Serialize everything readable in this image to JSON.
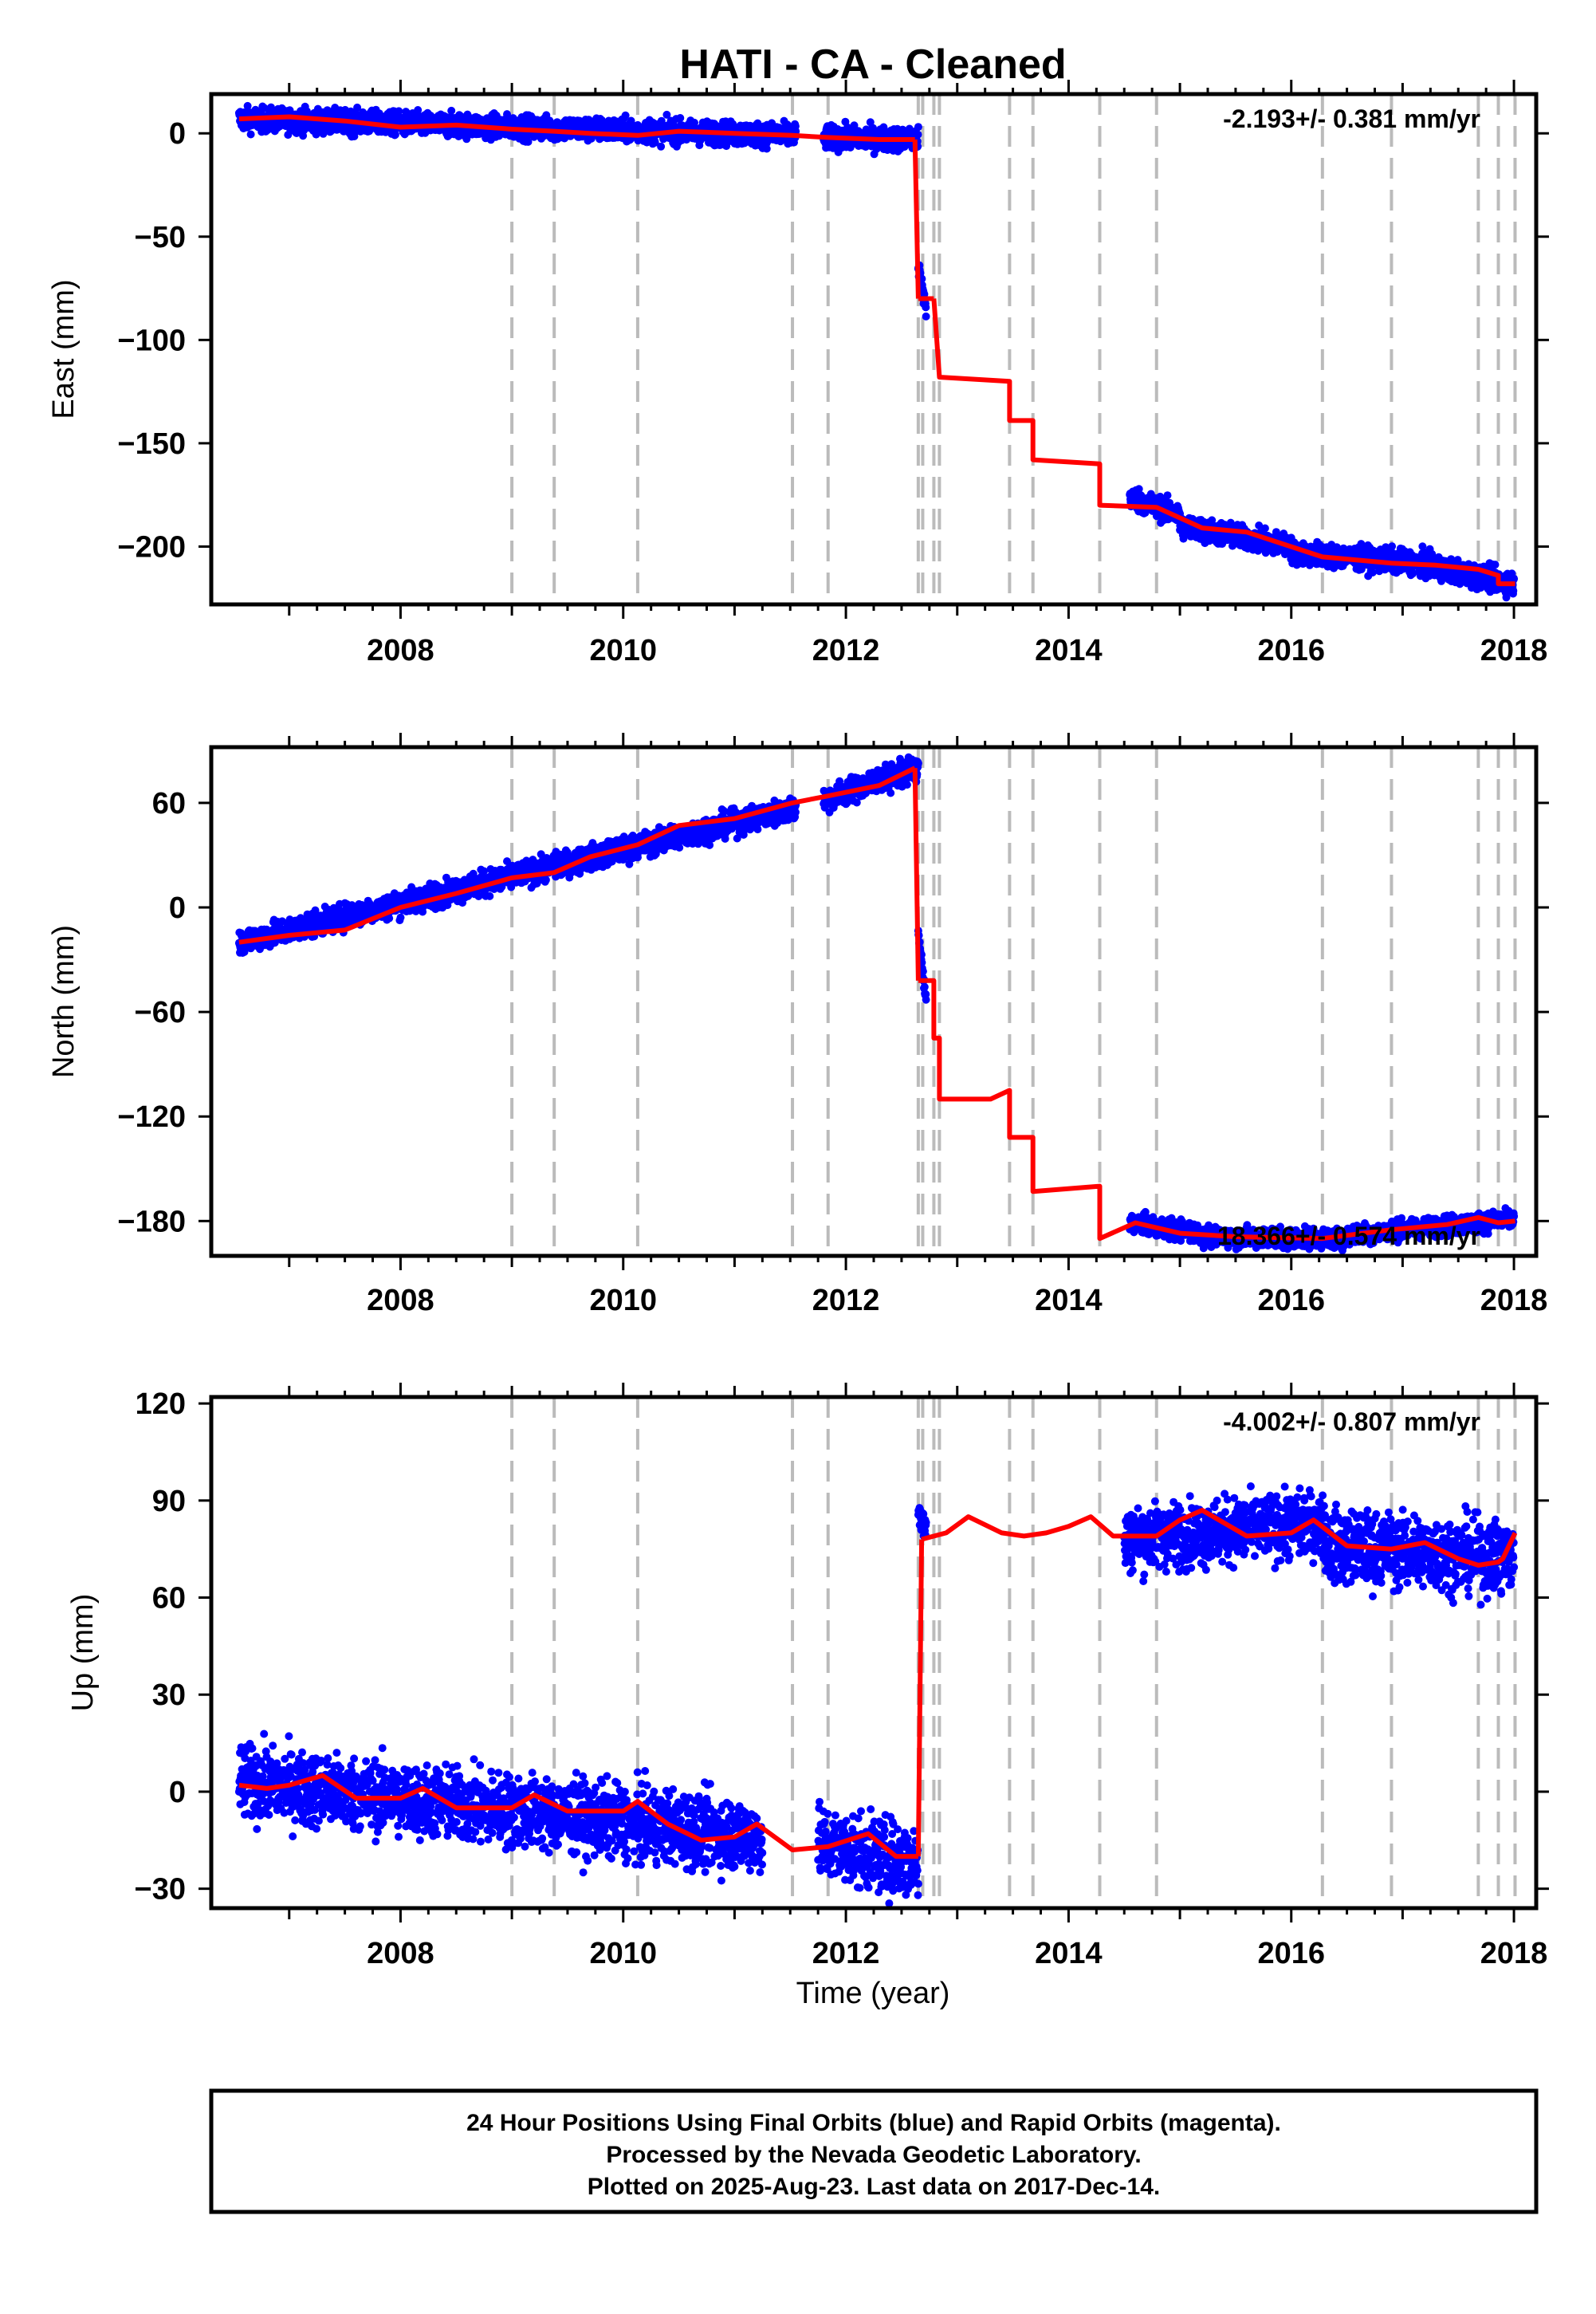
{
  "title": "HATI  - CA - Cleaned",
  "xlabel": "Time (year)",
  "footer": {
    "line1": "24 Hour Positions Using Final Orbits (blue) and Rapid Orbits (magenta).",
    "line2": "Processed by the Nevada Geodetic Laboratory.",
    "line3": "Plotted on 2025-Aug-23. Last data on 2017-Dec-14."
  },
  "colors": {
    "data": "#0000ff",
    "model": "#ff0000",
    "eventLine": "#bbbbbb"
  },
  "chart_data": [
    {
      "type": "scatter",
      "ylabel": "East (mm)",
      "rate_text": "-2.193+/- 0.381 mm/yr",
      "xlim": [
        2006.3,
        2018.2
      ],
      "ylim": [
        -228,
        19
      ],
      "xticks": [
        2008,
        2010,
        2012,
        2014,
        2016,
        2018
      ],
      "yticks": [
        0,
        -50,
        -100,
        -150,
        -200
      ],
      "event_lines": [
        2009.0,
        2009.38,
        2010.13,
        2011.52,
        2011.84,
        2012.65,
        2012.69,
        2012.79,
        2012.84,
        2013.47,
        2013.68,
        2014.28,
        2014.79,
        2016.28,
        2016.9,
        2017.68,
        2017.86,
        2018.01
      ],
      "model_segments": [
        [
          [
            2006.55,
            7
          ],
          [
            2007.0,
            8
          ],
          [
            2007.5,
            6
          ],
          [
            2008.0,
            3
          ],
          [
            2008.5,
            4
          ],
          [
            2009.0,
            2
          ],
          [
            2009.38,
            1
          ],
          [
            2009.7,
            0
          ],
          [
            2010.13,
            -1
          ],
          [
            2010.5,
            1
          ],
          [
            2011.0,
            0
          ],
          [
            2011.52,
            -1
          ],
          [
            2011.84,
            -2
          ],
          [
            2012.3,
            -3
          ],
          [
            2012.62,
            -3
          ]
        ],
        [
          [
            2012.62,
            -3
          ],
          [
            2012.65,
            -80
          ]
        ],
        [
          [
            2012.65,
            -80
          ],
          [
            2012.79,
            -80
          ],
          [
            2012.79,
            -80
          ]
        ],
        [
          [
            2012.79,
            -80
          ],
          [
            2012.84,
            -118
          ],
          [
            2013.47,
            -120
          ],
          [
            2013.47,
            -139
          ],
          [
            2013.68,
            -139
          ],
          [
            2013.68,
            -158
          ],
          [
            2014.28,
            -160
          ],
          [
            2014.28,
            -180
          ],
          [
            2014.79,
            -181
          ],
          [
            2015.2,
            -191
          ],
          [
            2015.6,
            -193
          ],
          [
            2016.28,
            -205
          ],
          [
            2016.9,
            -208
          ],
          [
            2017.3,
            -209
          ],
          [
            2017.68,
            -211
          ],
          [
            2017.86,
            -214
          ],
          [
            2017.86,
            -218
          ],
          [
            2018.01,
            -218
          ]
        ]
      ],
      "data_runs": [
        {
          "x": [
            2006.55,
            2011.55
          ],
          "y": [
            7,
            -1
          ],
          "spread": 4
        },
        {
          "x": [
            2011.8,
            2012.65
          ],
          "y": [
            -2,
            -3
          ],
          "spread": 4
        },
        {
          "x": [
            2012.65,
            2012.72
          ],
          "y": [
            -65,
            -85
          ],
          "spread": 4
        },
        {
          "x": [
            2014.55,
            2015.0
          ],
          "y": [
            -176,
            -185
          ],
          "spread": 4
        },
        {
          "x": [
            2015.0,
            2016.0
          ],
          "y": [
            -190,
            -200
          ],
          "spread": 4
        },
        {
          "x": [
            2016.0,
            2017.2
          ],
          "y": [
            -203,
            -208
          ],
          "spread": 4
        },
        {
          "x": [
            2017.2,
            2018.0
          ],
          "y": [
            -209,
            -218
          ],
          "spread": 4
        }
      ]
    },
    {
      "type": "scatter",
      "ylabel": "North (mm)",
      "rate_text": "18.366+/- 0.574 mm/yr",
      "xlim": [
        2006.3,
        2018.2
      ],
      "ylim": [
        -200,
        92
      ],
      "xticks": [
        2008,
        2010,
        2012,
        2014,
        2016,
        2018
      ],
      "yticks": [
        60,
        0,
        -60,
        -120,
        -180
      ],
      "event_lines": [
        2009.0,
        2009.38,
        2010.13,
        2011.52,
        2011.84,
        2012.65,
        2012.69,
        2012.79,
        2012.84,
        2013.47,
        2013.68,
        2014.28,
        2014.79,
        2016.28,
        2016.9,
        2017.68,
        2017.86,
        2018.01
      ],
      "model_segments": [
        [
          [
            2006.55,
            -20
          ],
          [
            2007.0,
            -16
          ],
          [
            2007.5,
            -13
          ],
          [
            2008.0,
            0
          ],
          [
            2008.5,
            8
          ],
          [
            2009.0,
            17
          ],
          [
            2009.38,
            20
          ],
          [
            2009.7,
            29
          ],
          [
            2010.13,
            36
          ],
          [
            2010.5,
            47
          ],
          [
            2011.0,
            51
          ],
          [
            2011.52,
            60
          ],
          [
            2011.84,
            64
          ],
          [
            2012.3,
            70
          ],
          [
            2012.62,
            80
          ]
        ],
        [
          [
            2012.62,
            80
          ],
          [
            2012.65,
            -42
          ]
        ],
        [
          [
            2012.65,
            -42
          ],
          [
            2012.79,
            -42
          ],
          [
            2012.79,
            -75
          ],
          [
            2012.84,
            -75
          ],
          [
            2012.84,
            -110
          ],
          [
            2013.3,
            -110
          ],
          [
            2013.47,
            -105
          ],
          [
            2013.47,
            -132
          ],
          [
            2013.68,
            -132
          ],
          [
            2013.68,
            -163
          ],
          [
            2014.28,
            -160
          ],
          [
            2014.28,
            -190
          ],
          [
            2014.6,
            -181
          ],
          [
            2015.0,
            -187
          ],
          [
            2015.5,
            -189
          ],
          [
            2016.28,
            -190
          ],
          [
            2016.9,
            -185
          ],
          [
            2017.4,
            -182
          ],
          [
            2017.68,
            -178
          ],
          [
            2017.86,
            -181
          ],
          [
            2018.01,
            -180
          ]
        ]
      ],
      "data_runs": [
        {
          "x": [
            2006.55,
            2011.55
          ],
          "y": [
            -20,
            57
          ],
          "spread": 5
        },
        {
          "x": [
            2011.8,
            2012.65
          ],
          "y": [
            62,
            80
          ],
          "spread": 5
        },
        {
          "x": [
            2012.65,
            2012.72
          ],
          "y": [
            -15,
            -55
          ],
          "spread": 4
        },
        {
          "x": [
            2014.55,
            2015.2
          ],
          "y": [
            -181,
            -187
          ],
          "spread": 4
        },
        {
          "x": [
            2015.2,
            2016.5
          ],
          "y": [
            -189,
            -190
          ],
          "spread": 4
        },
        {
          "x": [
            2016.5,
            2018.0
          ],
          "y": [
            -188,
            -179
          ],
          "spread": 4
        }
      ]
    },
    {
      "type": "scatter",
      "ylabel": "Up (mm)",
      "rate_text": "-4.002+/- 0.807 mm/yr",
      "xlim": [
        2006.3,
        2018.2
      ],
      "ylim": [
        -36,
        122
      ],
      "xticks": [
        2008,
        2010,
        2012,
        2014,
        2016,
        2018
      ],
      "yticks": [
        120,
        90,
        60,
        30,
        0,
        -30
      ],
      "event_lines": [
        2009.0,
        2009.38,
        2010.13,
        2011.52,
        2011.84,
        2012.65,
        2012.69,
        2012.79,
        2012.84,
        2013.47,
        2013.68,
        2014.28,
        2014.79,
        2016.28,
        2016.9,
        2017.68,
        2017.86,
        2018.01
      ],
      "model_segments": [
        [
          [
            2006.55,
            2
          ],
          [
            2006.8,
            1
          ],
          [
            2007.0,
            2
          ],
          [
            2007.3,
            5
          ],
          [
            2007.6,
            -2
          ],
          [
            2008.0,
            -2
          ],
          [
            2008.2,
            1
          ],
          [
            2008.5,
            -5
          ],
          [
            2009.0,
            -5
          ],
          [
            2009.2,
            -1
          ],
          [
            2009.5,
            -6
          ],
          [
            2010.0,
            -6
          ],
          [
            2010.13,
            -3
          ],
          [
            2010.4,
            -10
          ],
          [
            2010.7,
            -15
          ],
          [
            2011.0,
            -14
          ],
          [
            2011.2,
            -10
          ],
          [
            2011.52,
            -18
          ],
          [
            2011.84,
            -17
          ],
          [
            2012.2,
            -13
          ],
          [
            2012.45,
            -20
          ],
          [
            2012.65,
            -20
          ]
        ],
        [
          [
            2012.65,
            -20
          ],
          [
            2012.68,
            78
          ]
        ],
        [
          [
            2012.68,
            78
          ],
          [
            2012.9,
            80
          ],
          [
            2013.1,
            85
          ],
          [
            2013.4,
            80
          ],
          [
            2013.6,
            79
          ],
          [
            2013.8,
            80
          ],
          [
            2014.0,
            82
          ],
          [
            2014.2,
            85
          ],
          [
            2014.4,
            79
          ],
          [
            2014.79,
            79
          ],
          [
            2015.0,
            84
          ],
          [
            2015.2,
            87
          ],
          [
            2015.6,
            79
          ],
          [
            2016.0,
            80
          ],
          [
            2016.2,
            84
          ],
          [
            2016.5,
            76
          ],
          [
            2016.9,
            75
          ],
          [
            2017.2,
            77
          ],
          [
            2017.5,
            72
          ],
          [
            2017.68,
            70
          ],
          [
            2017.86,
            71
          ],
          [
            2017.9,
            72
          ],
          [
            2018.01,
            80
          ]
        ]
      ],
      "data_runs": [
        {
          "x": [
            2006.55,
            2011.25
          ],
          "y": [
            3,
            -14
          ],
          "spread": 8
        },
        {
          "x": [
            2011.75,
            2012.65
          ],
          "y": [
            -16,
            -22
          ],
          "spread": 8
        },
        {
          "x": [
            2012.65,
            2012.72
          ],
          "y": [
            88,
            80
          ],
          "spread": 4
        },
        {
          "x": [
            2014.5,
            2016.3
          ],
          "y": [
            78,
            83
          ],
          "spread": 7
        },
        {
          "x": [
            2016.3,
            2018.0
          ],
          "y": [
            76,
            72
          ],
          "spread": 8
        }
      ]
    }
  ]
}
